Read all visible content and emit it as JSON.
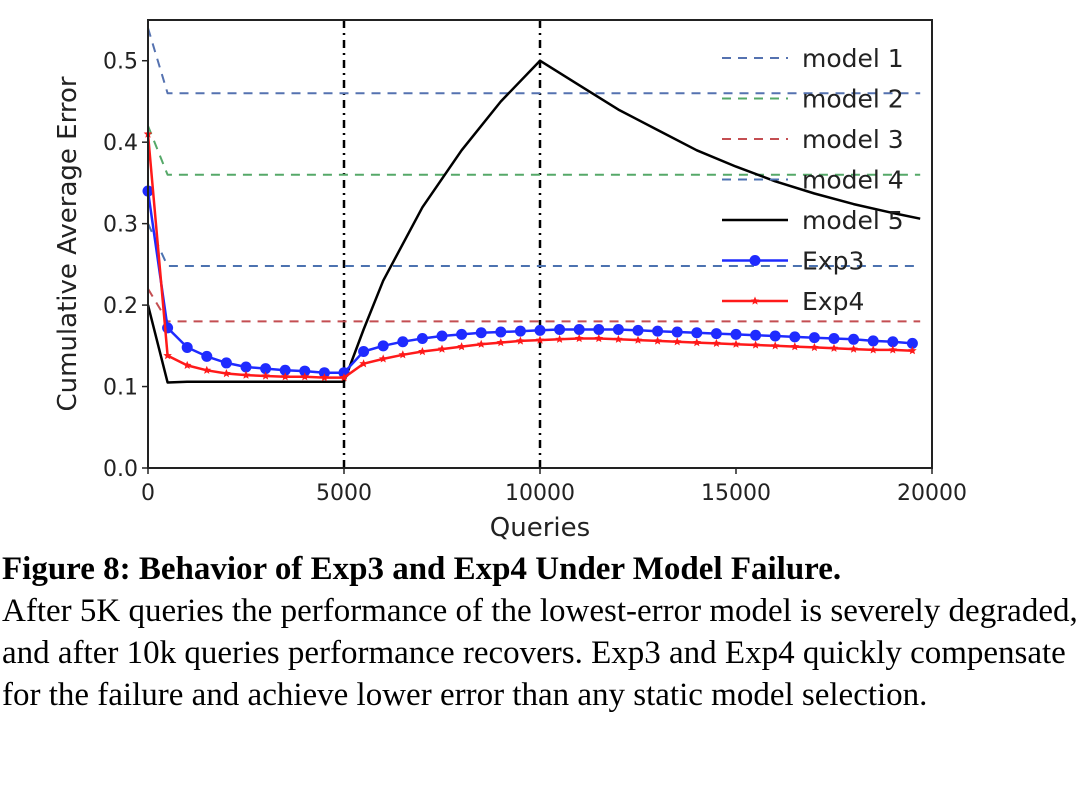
{
  "chart_data": {
    "type": "line",
    "xlabel": "Queries",
    "ylabel": "Cumulative Average Error",
    "xlim": [
      0,
      20000
    ],
    "ylim": [
      0,
      0.55
    ],
    "xticks": [
      0,
      5000,
      10000,
      15000,
      20000
    ],
    "yticks": [
      0.0,
      0.1,
      0.2,
      0.3,
      0.4,
      0.5
    ],
    "xtick_labels": [
      "0",
      "5000",
      "10000",
      "15000",
      "20000"
    ],
    "ytick_labels": [
      "0.0",
      "0.1",
      "0.2",
      "0.3",
      "0.4",
      "0.5"
    ],
    "vlines": [
      5000,
      10000
    ],
    "grid": false,
    "legend_position": "top-right",
    "series": [
      {
        "name": "model 1",
        "color": "#5572b0",
        "style": "dashed",
        "marker": "none",
        "x": [
          0,
          500,
          1000,
          19700
        ],
        "y": [
          0.54,
          0.46,
          0.46,
          0.46
        ]
      },
      {
        "name": "model 2",
        "color": "#55a868",
        "style": "dashed",
        "marker": "none",
        "x": [
          0,
          500,
          1000,
          19700
        ],
        "y": [
          0.42,
          0.36,
          0.36,
          0.36
        ]
      },
      {
        "name": "model 3",
        "color": "#c44e52",
        "style": "dashed",
        "marker": "none",
        "x": [
          0,
          500,
          1000,
          19700
        ],
        "y": [
          0.22,
          0.18,
          0.18,
          0.18
        ]
      },
      {
        "name": "model 4",
        "color": "#4c72b0",
        "style": "dashed",
        "marker": "none",
        "x": [
          0,
          500,
          1000,
          19700
        ],
        "y": [
          0.3,
          0.248,
          0.248,
          0.248
        ]
      },
      {
        "name": "model 5",
        "color": "#000000",
        "style": "solid",
        "marker": "none",
        "x": [
          0,
          500,
          1000,
          2000,
          3000,
          4000,
          5000,
          5500,
          6000,
          7000,
          8000,
          9000,
          10000,
          11000,
          12000,
          13000,
          14000,
          15000,
          16000,
          17000,
          18000,
          19000,
          19700
        ],
        "y": [
          0.2,
          0.105,
          0.106,
          0.106,
          0.106,
          0.106,
          0.106,
          0.17,
          0.23,
          0.32,
          0.39,
          0.45,
          0.5,
          0.47,
          0.44,
          0.415,
          0.39,
          0.37,
          0.352,
          0.337,
          0.324,
          0.313,
          0.306
        ]
      },
      {
        "name": "Exp3",
        "color": "#1f2bff",
        "style": "solid",
        "marker": "circle",
        "x": [
          0,
          500,
          1000,
          1500,
          2000,
          2500,
          3000,
          3500,
          4000,
          4500,
          5000,
          5500,
          6000,
          6500,
          7000,
          7500,
          8000,
          8500,
          9000,
          9500,
          10000,
          10500,
          11000,
          11500,
          12000,
          12500,
          13000,
          13500,
          14000,
          14500,
          15000,
          15500,
          16000,
          16500,
          17000,
          17500,
          18000,
          18500,
          19000,
          19500
        ],
        "y": [
          0.34,
          0.172,
          0.148,
          0.137,
          0.129,
          0.124,
          0.122,
          0.12,
          0.119,
          0.117,
          0.117,
          0.143,
          0.15,
          0.155,
          0.159,
          0.162,
          0.164,
          0.166,
          0.167,
          0.168,
          0.169,
          0.17,
          0.17,
          0.17,
          0.17,
          0.169,
          0.168,
          0.167,
          0.166,
          0.165,
          0.164,
          0.163,
          0.162,
          0.161,
          0.16,
          0.159,
          0.158,
          0.156,
          0.155,
          0.153
        ]
      },
      {
        "name": "Exp4",
        "color": "#ff1a1a",
        "style": "solid",
        "marker": "star",
        "x": [
          0,
          500,
          1000,
          1500,
          2000,
          2500,
          3000,
          3500,
          4000,
          4500,
          5000,
          5500,
          6000,
          6500,
          7000,
          7500,
          8000,
          8500,
          9000,
          9500,
          10000,
          10500,
          11000,
          11500,
          12000,
          12500,
          13000,
          13500,
          14000,
          14500,
          15000,
          15500,
          16000,
          16500,
          17000,
          17500,
          18000,
          18500,
          19000,
          19500
        ],
        "y": [
          0.41,
          0.138,
          0.126,
          0.12,
          0.116,
          0.114,
          0.113,
          0.112,
          0.112,
          0.111,
          0.111,
          0.128,
          0.134,
          0.139,
          0.143,
          0.146,
          0.149,
          0.152,
          0.154,
          0.156,
          0.157,
          0.158,
          0.159,
          0.159,
          0.158,
          0.157,
          0.156,
          0.155,
          0.154,
          0.153,
          0.152,
          0.151,
          0.15,
          0.149,
          0.148,
          0.147,
          0.146,
          0.145,
          0.145,
          0.144
        ]
      }
    ]
  },
  "caption": {
    "title": "Figure 8: Behavior of Exp3 and Exp4 Under Model Failure.",
    "body": "After 5K queries the performance of the lowest-error model is severely degraded, and after 10k queries performance recovers. Exp3 and Exp4 quickly compensate for the failure and achieve lower error than any static model selection."
  }
}
